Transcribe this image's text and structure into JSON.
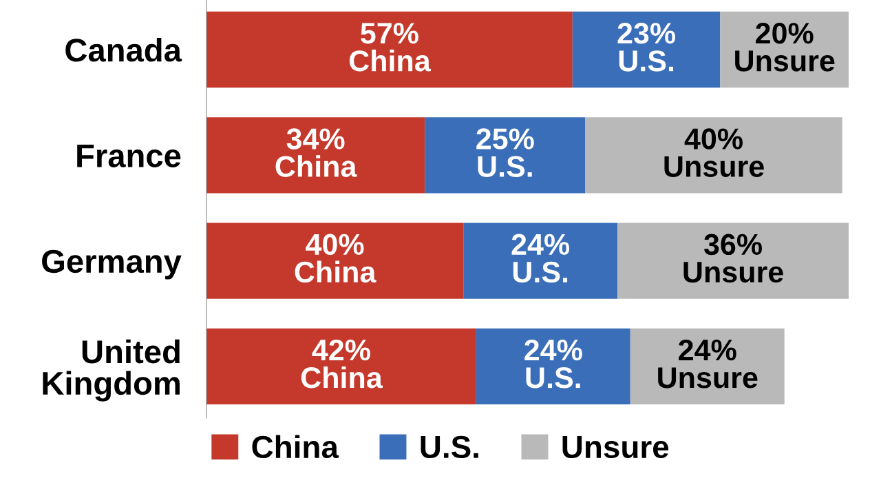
{
  "chart_data": {
    "type": "bar",
    "orientation": "horizontal",
    "stacked": true,
    "categories": [
      "Canada",
      "France",
      "Germany",
      "United\nKingdom"
    ],
    "series": [
      {
        "name": "China",
        "color": "#c5392c",
        "values": [
          57,
          34,
          40,
          42
        ],
        "value_labels": [
          "57%\nChina",
          "34%\nChina",
          "40%\nChina",
          "42%\nChina"
        ]
      },
      {
        "name": "U.S.",
        "color": "#3a6eb9",
        "values": [
          23,
          25,
          24,
          24
        ],
        "value_labels": [
          "23%\nU.S.",
          "25%\nU.S.",
          "24%\nU.S.",
          "24%\nU.S."
        ]
      },
      {
        "name": "Unsure",
        "color": "#b9b9b9",
        "values": [
          20,
          40,
          36,
          24
        ],
        "value_labels": [
          "20%\nUnsure",
          "40%\nUnsure",
          "36%\nUnsure",
          "24%\nUnsure"
        ]
      }
    ],
    "xlim": [
      0,
      100
    ],
    "tick_labels": "y",
    "grid": false,
    "legend": "bottom"
  }
}
